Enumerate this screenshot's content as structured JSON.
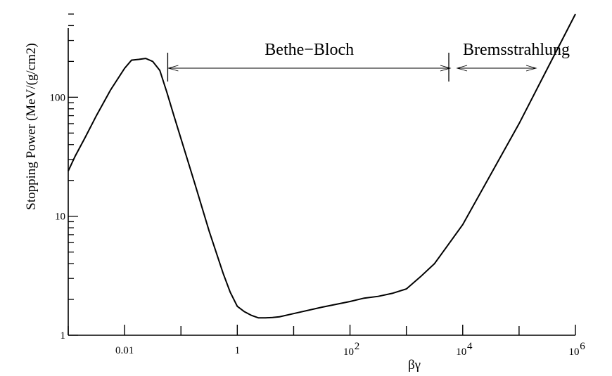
{
  "chart_data": {
    "type": "line",
    "title": "",
    "xlabel": "βγ",
    "ylabel": "Stopping Power (MeV/(g/cm2)",
    "x_scale": "log",
    "y_scale": "log",
    "xlim": [
      0.001,
      1000000
    ],
    "ylim": [
      1,
      500
    ],
    "x_ticks": [
      {
        "value": 0.01,
        "label": "0.01"
      },
      {
        "value": 1,
        "label": "1"
      },
      {
        "value": 100,
        "base": "10",
        "exp": "2"
      },
      {
        "value": 10000,
        "base": "10",
        "exp": "4"
      },
      {
        "value": 1000000,
        "base": "10",
        "exp": "6"
      }
    ],
    "y_ticks": [
      {
        "value": 1,
        "label": "1"
      },
      {
        "value": 10,
        "label": "10"
      },
      {
        "value": 100,
        "label": "100"
      }
    ],
    "series": [
      {
        "x": [
          0.001,
          0.00133,
          0.002,
          0.00316,
          0.00562,
          0.01,
          0.0133,
          0.0178,
          0.0237,
          0.0316,
          0.0422,
          0.0562,
          0.075,
          0.1,
          0.178,
          0.316,
          0.562,
          0.75,
          1.0,
          1.33,
          1.78,
          2.37,
          3.16,
          4.22,
          5.62,
          10,
          31.6,
          100,
          178,
          316,
          562,
          1000,
          1780,
          3160,
          10000,
          100000,
          1000000
        ],
        "y": [
          24,
          32,
          46,
          70,
          115,
          175,
          205,
          208,
          212,
          200,
          168,
          110,
          70,
          45,
          18.5,
          7.5,
          3.3,
          2.3,
          1.75,
          1.58,
          1.47,
          1.4,
          1.4,
          1.41,
          1.43,
          1.52,
          1.72,
          1.92,
          2.05,
          2.12,
          2.25,
          2.45,
          3.1,
          4.0,
          8.5,
          60,
          500
        ]
      }
    ],
    "annotations": [
      {
        "text": "Bethe−Bloch",
        "x_from": 0.06,
        "x_to": 6000
      },
      {
        "text": "Bremsstrahlung",
        "x_from": 8000,
        "x_to": 200000
      }
    ],
    "grid": false,
    "legend": "none"
  }
}
